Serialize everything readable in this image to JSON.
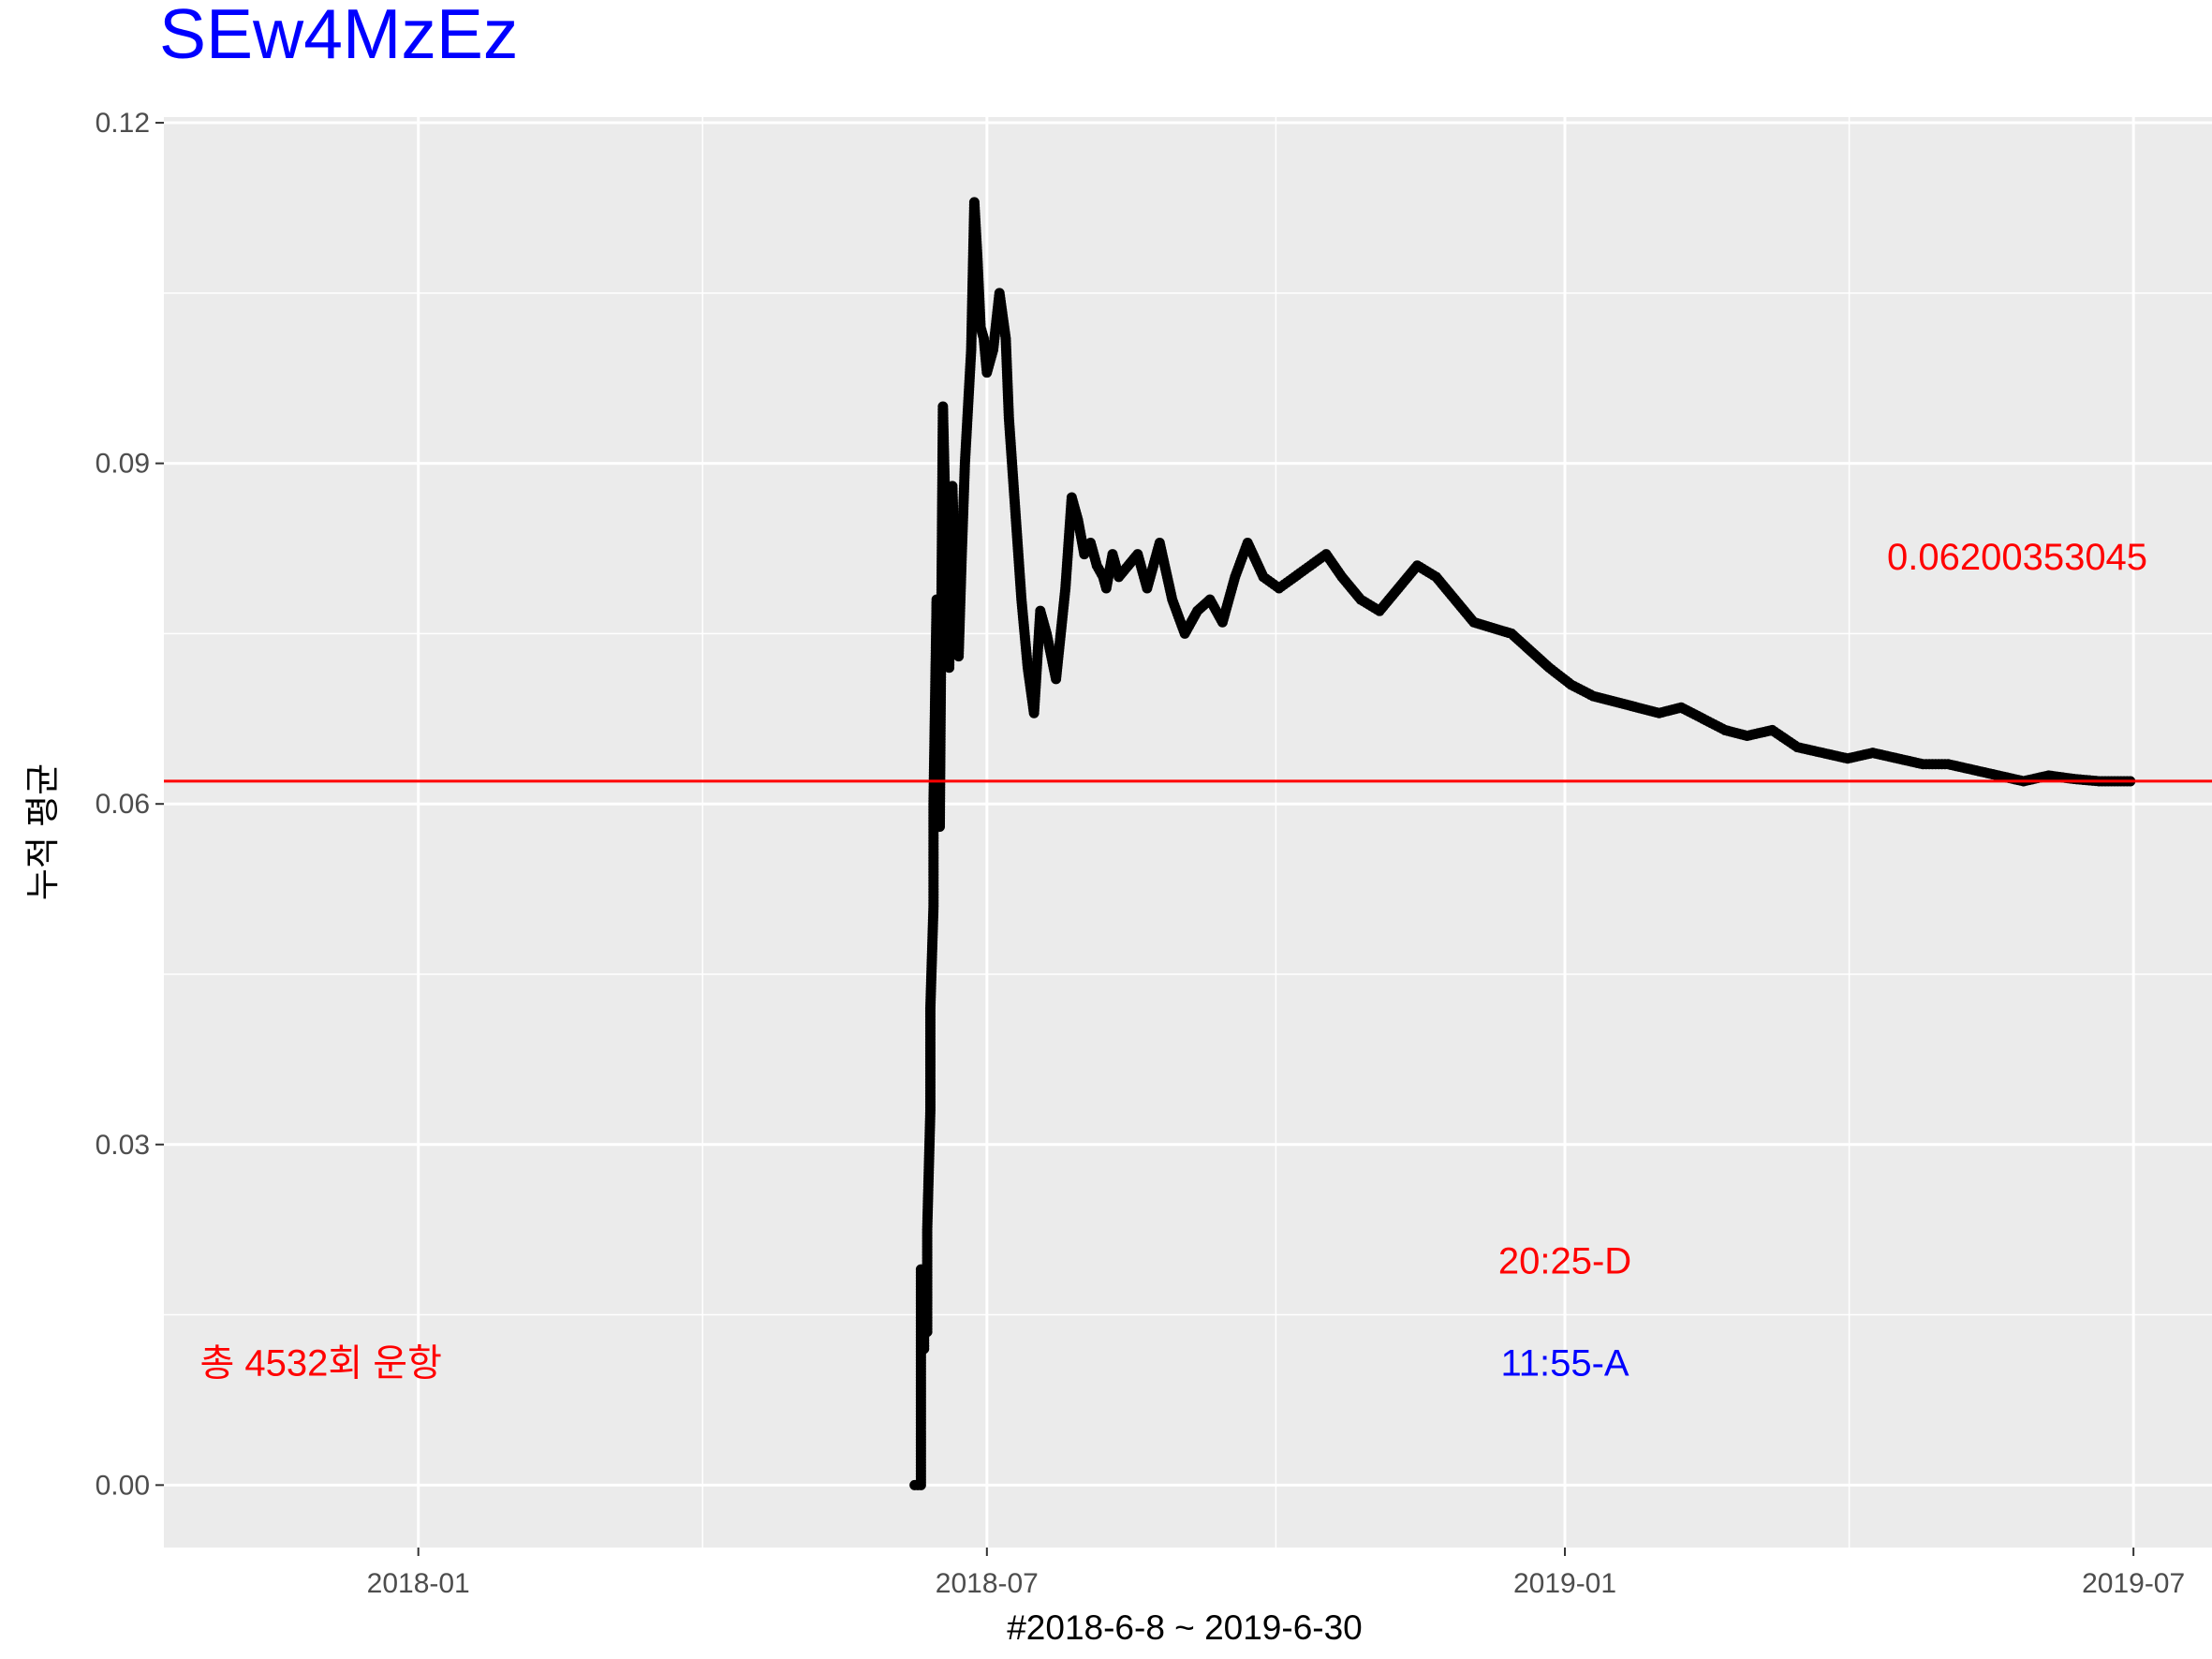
{
  "chart_data": {
    "type": "line",
    "title": "SEw4MzEz",
    "xlabel": "#2018-6-8 ~ 2019-6-30",
    "ylabel": "누적 평균",
    "x_ticks": [
      "2018-01",
      "2018-07",
      "2019-01",
      "2019-07"
    ],
    "y_ticks": [
      "0.00",
      "0.03",
      "0.06",
      "0.09",
      "0.12"
    ],
    "xlim": [
      "2017-10-12",
      "2019-07-26"
    ],
    "ylim": [
      -0.0055,
      0.1205
    ],
    "grid": true,
    "hline": {
      "value": 0.0620035,
      "color": "#ff0000"
    },
    "annotations": [
      {
        "text": "0.06200353045",
        "x": "2019-05-25",
        "y": 0.0818,
        "color": "#ff0000"
      },
      {
        "text": "20:25-D",
        "x": "2019-01-01",
        "y": 0.0198,
        "color": "#ff0000"
      },
      {
        "text": "11:55-A",
        "x": "2019-01-01",
        "y": 0.0108,
        "color": "#0000ff"
      },
      {
        "text": "총 4532회 운항",
        "x": "2017-12-01",
        "y": 0.0108,
        "color": "#ff0000"
      }
    ],
    "series": [
      {
        "x": [
          "2018-06-08",
          "2018-06-10",
          "2018-06-10",
          "2018-06-11",
          "2018-06-11",
          "2018-06-12",
          "2018-06-12",
          "2018-06-13",
          "2018-06-13",
          "2018-06-14",
          "2018-06-14",
          "2018-06-15",
          "2018-06-15",
          "2018-06-16",
          "2018-06-16",
          "2018-06-17",
          "2018-06-18",
          "2018-06-19",
          "2018-06-20",
          "2018-06-21",
          "2018-06-22",
          "2018-06-23",
          "2018-06-24",
          "2018-06-25",
          "2018-06-26",
          "2018-06-27",
          "2018-06-28",
          "2018-06-29",
          "2018-06-30",
          "2018-07-01",
          "2018-07-02",
          "2018-07-03",
          "2018-07-05",
          "2018-07-07",
          "2018-07-08",
          "2018-07-10",
          "2018-07-12",
          "2018-07-14",
          "2018-07-16",
          "2018-07-18",
          "2018-07-20",
          "2018-07-23",
          "2018-07-26",
          "2018-07-28",
          "2018-07-30",
          "2018-08-01",
          "2018-08-03",
          "2018-08-05",
          "2018-08-07",
          "2018-08-08",
          "2018-08-10",
          "2018-08-12",
          "2018-08-15",
          "2018-08-18",
          "2018-08-21",
          "2018-08-25",
          "2018-08-29",
          "2018-09-02",
          "2018-09-06",
          "2018-09-10",
          "2018-09-14",
          "2018-09-18",
          "2018-09-22",
          "2018-09-27",
          "2018-10-02",
          "2018-10-07",
          "2018-10-12",
          "2018-10-17",
          "2018-10-22",
          "2018-10-28",
          "2018-11-03",
          "2018-11-09",
          "2018-11-15",
          "2018-11-21",
          "2018-11-27",
          "2018-12-03",
          "2018-12-09",
          "2018-12-15",
          "2018-12-21",
          "2018-12-27",
          "2019-01-03",
          "2019-01-10",
          "2019-01-17",
          "2019-01-24",
          "2019-01-31",
          "2019-02-07",
          "2019-02-14",
          "2019-02-21",
          "2019-02-28",
          "2019-03-08",
          "2019-03-16",
          "2019-03-24",
          "2019-04-01",
          "2019-04-09",
          "2019-04-17",
          "2019-04-25",
          "2019-05-03",
          "2019-05-11",
          "2019-05-19",
          "2019-05-27",
          "2019-06-04",
          "2019-06-12",
          "2019-06-20",
          "2019-06-25",
          "2019-06-30"
        ],
        "values": [
          0.0,
          0.0,
          0.019,
          0.012,
          0.016,
          0.0135,
          0.0225,
          0.033,
          0.042,
          0.051,
          0.06,
          0.078,
          0.07,
          0.066,
          0.058,
          0.095,
          0.083,
          0.072,
          0.088,
          0.079,
          0.073,
          0.082,
          0.09,
          0.095,
          0.1,
          0.113,
          0.108,
          0.102,
          0.101,
          0.098,
          0.099,
          0.1,
          0.105,
          0.101,
          0.094,
          0.086,
          0.078,
          0.072,
          0.068,
          0.077,
          0.075,
          0.071,
          0.079,
          0.087,
          0.085,
          0.082,
          0.083,
          0.081,
          0.08,
          0.079,
          0.082,
          0.08,
          0.081,
          0.082,
          0.079,
          0.083,
          0.078,
          0.075,
          0.077,
          0.078,
          0.076,
          0.08,
          0.083,
          0.08,
          0.079,
          0.08,
          0.081,
          0.082,
          0.08,
          0.078,
          0.077,
          0.079,
          0.081,
          0.08,
          0.078,
          0.076,
          0.0755,
          0.075,
          0.0735,
          0.072,
          0.0705,
          0.0695,
          0.069,
          0.0685,
          0.068,
          0.0685,
          0.0675,
          0.0665,
          0.066,
          0.0665,
          0.065,
          0.0645,
          0.064,
          0.0645,
          0.064,
          0.0635,
          0.0635,
          0.063,
          0.0625,
          0.062,
          0.0625,
          0.0622,
          0.062,
          0.062,
          0.062
        ]
      }
    ]
  }
}
